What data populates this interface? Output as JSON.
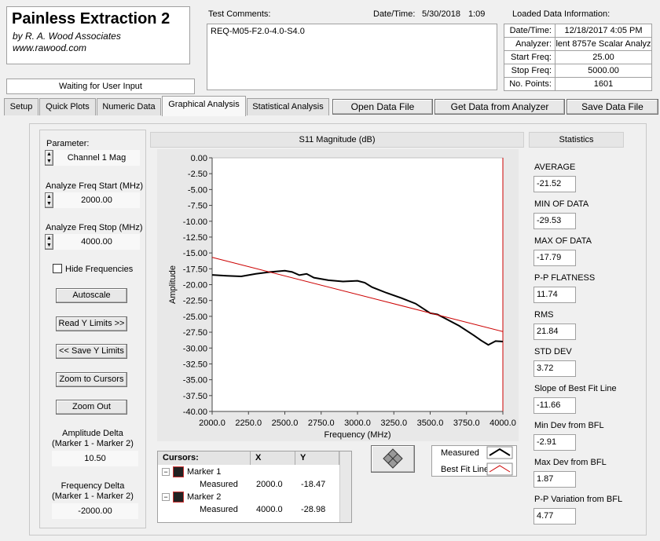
{
  "header": {
    "title": "Painless Extraction 2",
    "subtitle": "by R. A. Wood Associates",
    "url": "www.rawood.com",
    "status": "Waiting for User Input"
  },
  "comments": {
    "label": "Test Comments:",
    "datetime_label": "Date/Time:",
    "date": "5/30/2018",
    "time": "1:09",
    "text": "REQ-M05-F2.0-4.0-S4.0"
  },
  "loaded": {
    "title": "Loaded Data Information:",
    "rows": [
      {
        "label": "Date/Time:",
        "value": "12/18/2017 4:05 PM"
      },
      {
        "label": "Analyzer:",
        "value": "lent 8757e Scalar Analyz"
      },
      {
        "label": "Start Freq:",
        "value": "25.00"
      },
      {
        "label": "Stop Freq:",
        "value": "5000.00"
      },
      {
        "label": "No. Points:",
        "value": "1601"
      }
    ]
  },
  "tabs": [
    "Setup",
    "Quick Plots",
    "Numeric Data",
    "Graphical Analysis",
    "Statistical Analysis"
  ],
  "buttons": [
    "Open Data File",
    "Get Data from Analyzer",
    "Save Data File"
  ],
  "controls": {
    "parameter_label": "Parameter:",
    "parameter": "Channel 1 Mag",
    "start_label": "Analyze Freq Start (MHz)",
    "start": "2000.00",
    "stop_label": "Analyze Freq Stop (MHz)",
    "stop": "4000.00",
    "hide": "Hide Frequencies",
    "buttons": [
      "Autoscale",
      "Read Y Limits >>",
      "<< Save Y Limits",
      "Zoom to Cursors",
      "Zoom Out"
    ],
    "amp_label": "Amplitude Delta",
    "amp_sub": "(Marker 1 - Marker 2)",
    "amp": "10.50",
    "freq_label": "Frequency Delta",
    "freq_sub": "(Marker 1 - Marker 2)",
    "freq": "-2000.00"
  },
  "statistics": {
    "title": "Statistics",
    "items": [
      {
        "label": "AVERAGE",
        "value": "-21.52"
      },
      {
        "label": "MIN OF DATA",
        "value": "-29.53"
      },
      {
        "label": "MAX OF DATA",
        "value": "-17.79"
      },
      {
        "label": "P-P FLATNESS",
        "value": "11.74"
      },
      {
        "label": "RMS",
        "value": "21.84"
      },
      {
        "label": "STD DEV",
        "value": "3.72"
      },
      {
        "label": "Slope of Best Fit Line",
        "value": "-11.66"
      },
      {
        "label": "Min Dev from BFL",
        "value": "-2.91"
      },
      {
        "label": "Max Dev from BFL",
        "value": "1.87"
      },
      {
        "label": "P-P Variation from BFL",
        "value": "4.77"
      }
    ]
  },
  "cursors": {
    "headers": [
      "Cursors:",
      "X",
      "Y"
    ],
    "rows": [
      {
        "marker": "Marker 1",
        "trace": "Measured",
        "x": "2000.0",
        "y": "-18.47"
      },
      {
        "marker": "Marker 2",
        "trace": "Measured",
        "x": "4000.0",
        "y": "-28.98"
      }
    ]
  },
  "chart_data": {
    "type": "line",
    "title": "S11 Magnitude (dB)",
    "x_label": "Frequency (MHz)",
    "y_label": "Amplitude",
    "xlim": [
      2000,
      4000
    ],
    "ylim": [
      -40,
      0
    ],
    "xticks": [
      {
        "value": 2000,
        "label": "2000.0"
      },
      {
        "value": 2250,
        "label": "2250.0"
      },
      {
        "value": 2500,
        "label": "2500.0"
      },
      {
        "value": 2750,
        "label": "2750.0"
      },
      {
        "value": 3000,
        "label": "3000.0"
      },
      {
        "value": 3250,
        "label": "3250.0"
      },
      {
        "value": 3500,
        "label": "3500.0"
      },
      {
        "value": 3750,
        "label": "3750.0"
      },
      {
        "value": 4000,
        "label": "4000.0"
      }
    ],
    "yticks": [
      {
        "value": 0,
        "label": "0.00"
      },
      {
        "value": -2.5,
        "label": "-2.50"
      },
      {
        "value": -5,
        "label": "-5.00"
      },
      {
        "value": -7.5,
        "label": "-7.50"
      },
      {
        "value": -10,
        "label": "-10.00"
      },
      {
        "value": -12.5,
        "label": "-12.50"
      },
      {
        "value": -15,
        "label": "-15.00"
      },
      {
        "value": -17.5,
        "label": "-17.50"
      },
      {
        "value": -20,
        "label": "-20.00"
      },
      {
        "value": -22.5,
        "label": "-22.50"
      },
      {
        "value": -25,
        "label": "-25.00"
      },
      {
        "value": -27.5,
        "label": "-27.50"
      },
      {
        "value": -30,
        "label": "-30.00"
      },
      {
        "value": -32.5,
        "label": "-32.50"
      },
      {
        "value": -35,
        "label": "-35.00"
      },
      {
        "value": -37.5,
        "label": "-37.50"
      },
      {
        "value": -40,
        "label": "-40.00"
      }
    ],
    "series": [
      {
        "name": "Measured",
        "color": "#000000",
        "x": [
          2000,
          2100,
          2200,
          2300,
          2400,
          2500,
          2550,
          2600,
          2650,
          2700,
          2800,
          2900,
          3000,
          3050,
          3100,
          3200,
          3300,
          3400,
          3500,
          3550,
          3600,
          3700,
          3800,
          3850,
          3900,
          3950,
          4000
        ],
        "values": [
          -18.47,
          -18.6,
          -18.7,
          -18.3,
          -18.0,
          -17.8,
          -18.0,
          -18.5,
          -18.3,
          -18.9,
          -19.3,
          -19.5,
          -19.4,
          -19.7,
          -20.4,
          -21.3,
          -22.1,
          -23.0,
          -24.5,
          -24.7,
          -25.3,
          -26.5,
          -28.0,
          -28.8,
          -29.5,
          -28.9,
          -28.98
        ]
      },
      {
        "name": "Best Fit Line",
        "color": "#cc0000",
        "x": [
          2000,
          4000
        ],
        "values": [
          -15.7,
          -27.4
        ]
      }
    ]
  }
}
